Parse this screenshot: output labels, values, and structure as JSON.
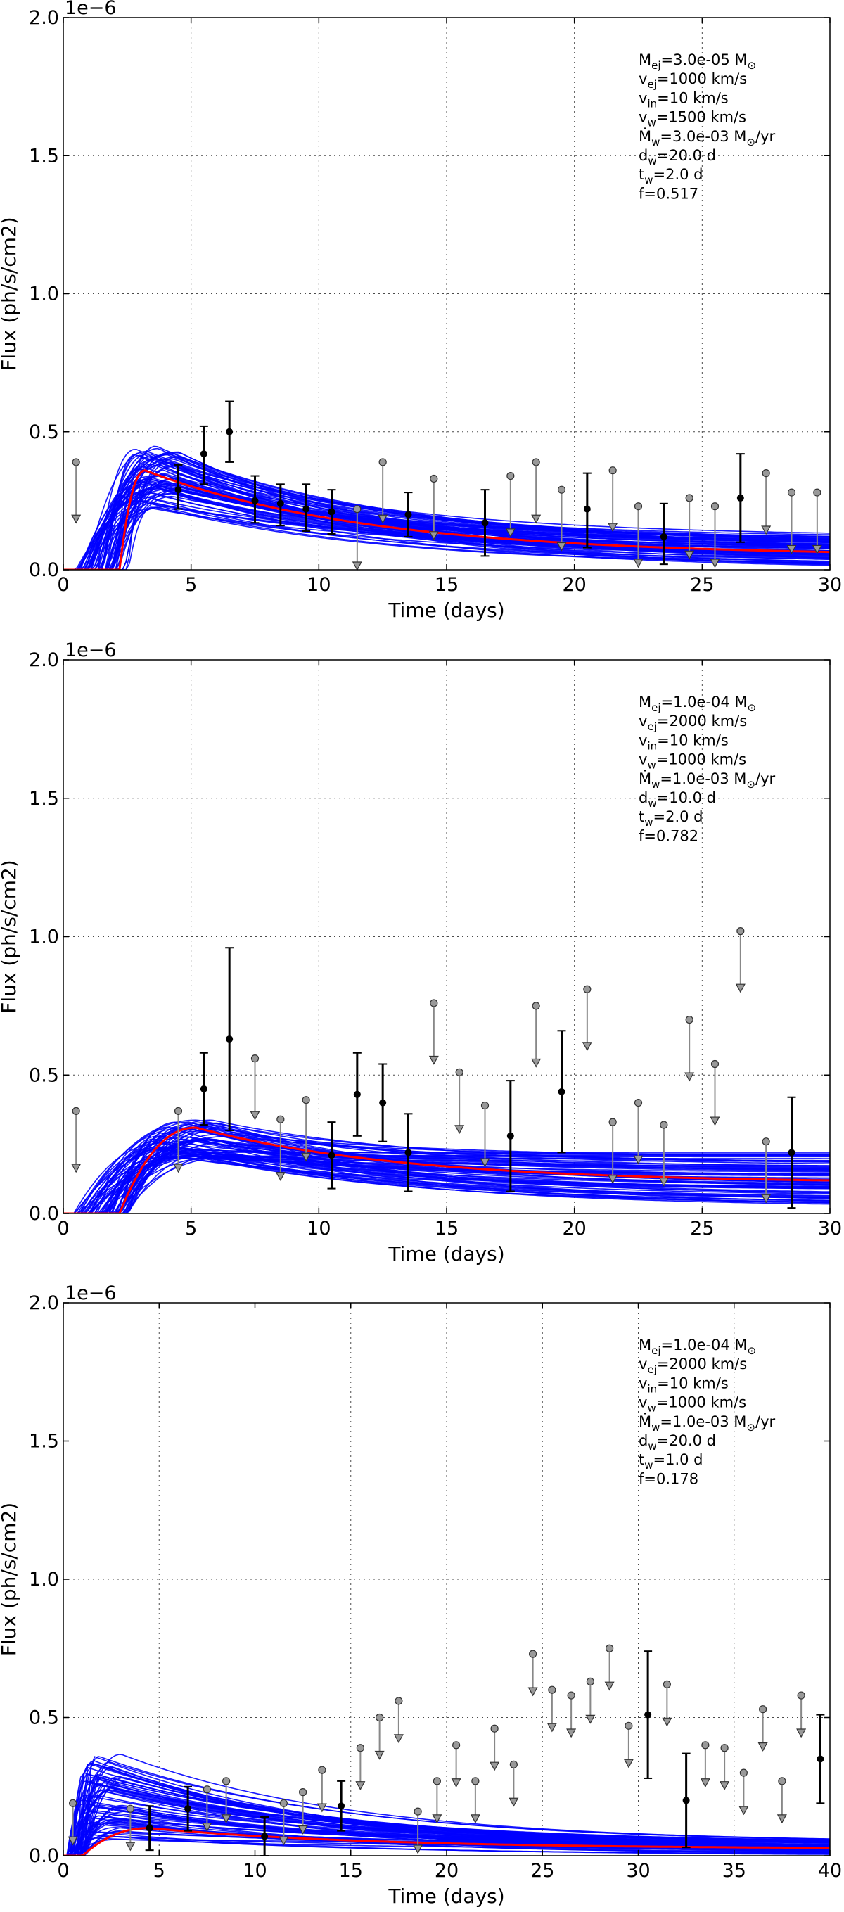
{
  "chart_data": [
    {
      "type": "line",
      "title": "",
      "xlabel": "Time (days)",
      "ylabel": "Flux (ph/s/cm2)",
      "offset_text": "1e−6",
      "xlim": [
        0,
        30
      ],
      "ylim": [
        0,
        2.0
      ],
      "xticks": [
        "0",
        "5",
        "10",
        "15",
        "20",
        "25",
        "30"
      ],
      "yticks": [
        "0.0",
        "0.5",
        "1.0",
        "1.5",
        "2.0"
      ],
      "grid": true,
      "annotation": [
        "M_ej=3.0e-05 M_⊙",
        "v_ej=1000 km/s",
        "v_in=10 km/s",
        "v_w=1500 km/s",
        "Ṁ_w=3.0e-03 M_⊙/yr",
        "d_w=20.0 d",
        "t_w=2.0 d",
        "f=0.517"
      ],
      "model": {
        "t0": 2.2,
        "peak_t": 3.2,
        "peak_flux": 0.36,
        "end_flux": 0.05,
        "ensemble": {
          "t0_range": [
            0.4,
            2.6
          ],
          "peak_t_range": [
            2.8,
            4.6
          ],
          "peak_range": [
            0.22,
            0.45
          ],
          "end_range": [
            0.0,
            0.12
          ]
        }
      },
      "detections": [
        {
          "t": 4.5,
          "y": 0.29,
          "lo": 0.22,
          "hi": 0.38
        },
        {
          "t": 5.5,
          "y": 0.42,
          "lo": 0.31,
          "hi": 0.52
        },
        {
          "t": 6.5,
          "y": 0.5,
          "lo": 0.39,
          "hi": 0.61
        },
        {
          "t": 7.5,
          "y": 0.25,
          "lo": 0.17,
          "hi": 0.34
        },
        {
          "t": 8.5,
          "y": 0.24,
          "lo": 0.16,
          "hi": 0.31
        },
        {
          "t": 9.5,
          "y": 0.22,
          "lo": 0.14,
          "hi": 0.31
        },
        {
          "t": 10.5,
          "y": 0.21,
          "lo": 0.13,
          "hi": 0.29
        },
        {
          "t": 13.5,
          "y": 0.2,
          "lo": 0.12,
          "hi": 0.28
        },
        {
          "t": 16.5,
          "y": 0.17,
          "lo": 0.05,
          "hi": 0.29
        },
        {
          "t": 20.5,
          "y": 0.22,
          "lo": 0.08,
          "hi": 0.35
        },
        {
          "t": 23.5,
          "y": 0.12,
          "lo": 0.02,
          "hi": 0.24
        },
        {
          "t": 26.5,
          "y": 0.26,
          "lo": 0.1,
          "hi": 0.42
        }
      ],
      "upper_limits": [
        {
          "t": 0.5,
          "y": 0.39,
          "arrow_to": 0.17
        },
        {
          "t": 11.5,
          "y": 0.22,
          "arrow_to": 0.0
        },
        {
          "t": 12.5,
          "y": 0.39,
          "arrow_to": 0.17
        },
        {
          "t": 14.5,
          "y": 0.33,
          "arrow_to": 0.11
        },
        {
          "t": 17.5,
          "y": 0.34,
          "arrow_to": 0.12
        },
        {
          "t": 18.5,
          "y": 0.39,
          "arrow_to": 0.17
        },
        {
          "t": 19.5,
          "y": 0.29,
          "arrow_to": 0.07
        },
        {
          "t": 21.5,
          "y": 0.36,
          "arrow_to": 0.14
        },
        {
          "t": 22.5,
          "y": 0.23,
          "arrow_to": 0.01
        },
        {
          "t": 24.5,
          "y": 0.26,
          "arrow_to": 0.04
        },
        {
          "t": 25.5,
          "y": 0.23,
          "arrow_to": 0.01
        },
        {
          "t": 27.5,
          "y": 0.35,
          "arrow_to": 0.13
        },
        {
          "t": 28.5,
          "y": 0.28,
          "arrow_to": 0.06
        },
        {
          "t": 29.5,
          "y": 0.28,
          "arrow_to": 0.06
        }
      ]
    },
    {
      "type": "line",
      "title": "",
      "xlabel": "Time (days)",
      "ylabel": "Flux (ph/s/cm2)",
      "offset_text": "1e−6",
      "xlim": [
        0,
        30
      ],
      "ylim": [
        0,
        2.0
      ],
      "xticks": [
        "0",
        "5",
        "10",
        "15",
        "20",
        "25",
        "30"
      ],
      "yticks": [
        "0.0",
        "0.5",
        "1.0",
        "1.5",
        "2.0"
      ],
      "grid": true,
      "annotation": [
        "M_ej=1.0e-04 M_⊙",
        "v_ej=2000 km/s",
        "v_in=10 km/s",
        "v_w=1000 km/s",
        "Ṁ_w=1.0e-03 M_⊙/yr",
        "d_w=10.0 d",
        "t_w=2.0 d",
        "f=0.782"
      ],
      "model": {
        "t0": 2.2,
        "peak_t": 5.2,
        "peak_flux": 0.31,
        "end_flux": 0.11,
        "ensemble": {
          "t0_range": [
            0.4,
            2.6
          ],
          "peak_t_range": [
            3.5,
            6.5
          ],
          "peak_range": [
            0.2,
            0.34
          ],
          "end_range": [
            0.02,
            0.22
          ]
        }
      },
      "detections": [
        {
          "t": 5.5,
          "y": 0.45,
          "lo": 0.32,
          "hi": 0.58
        },
        {
          "t": 6.5,
          "y": 0.63,
          "lo": 0.3,
          "hi": 0.96
        },
        {
          "t": 10.5,
          "y": 0.21,
          "lo": 0.09,
          "hi": 0.33
        },
        {
          "t": 11.5,
          "y": 0.43,
          "lo": 0.28,
          "hi": 0.58
        },
        {
          "t": 12.5,
          "y": 0.4,
          "lo": 0.26,
          "hi": 0.54
        },
        {
          "t": 13.5,
          "y": 0.22,
          "lo": 0.08,
          "hi": 0.36
        },
        {
          "t": 17.5,
          "y": 0.28,
          "lo": 0.08,
          "hi": 0.48
        },
        {
          "t": 19.5,
          "y": 0.44,
          "lo": 0.22,
          "hi": 0.66
        },
        {
          "t": 28.5,
          "y": 0.22,
          "lo": 0.02,
          "hi": 0.42
        }
      ],
      "upper_limits": [
        {
          "t": 0.5,
          "y": 0.37,
          "arrow_to": 0.15
        },
        {
          "t": 4.5,
          "y": 0.37,
          "arrow_to": 0.15
        },
        {
          "t": 7.5,
          "y": 0.56,
          "arrow_to": 0.34
        },
        {
          "t": 8.5,
          "y": 0.34,
          "arrow_to": 0.12
        },
        {
          "t": 9.5,
          "y": 0.41,
          "arrow_to": 0.19
        },
        {
          "t": 14.5,
          "y": 0.76,
          "arrow_to": 0.54
        },
        {
          "t": 15.5,
          "y": 0.51,
          "arrow_to": 0.29
        },
        {
          "t": 16.5,
          "y": 0.39,
          "arrow_to": 0.17
        },
        {
          "t": 18.5,
          "y": 0.75,
          "arrow_to": 0.53
        },
        {
          "t": 20.5,
          "y": 0.81,
          "arrow_to": 0.59
        },
        {
          "t": 21.5,
          "y": 0.33,
          "arrow_to": 0.11
        },
        {
          "t": 22.5,
          "y": 0.4,
          "arrow_to": 0.18
        },
        {
          "t": 23.5,
          "y": 0.32,
          "arrow_to": 0.1
        },
        {
          "t": 24.5,
          "y": 0.7,
          "arrow_to": 0.48
        },
        {
          "t": 25.5,
          "y": 0.54,
          "arrow_to": 0.32
        },
        {
          "t": 26.5,
          "y": 1.02,
          "arrow_to": 0.8
        },
        {
          "t": 27.5,
          "y": 0.26,
          "arrow_to": 0.04
        }
      ]
    },
    {
      "type": "line",
      "title": "",
      "xlabel": "Time (days)",
      "ylabel": "Flux (ph/s/cm2)",
      "offset_text": "1e−6",
      "xlim": [
        0,
        40
      ],
      "ylim": [
        0,
        2.0
      ],
      "xticks": [
        "0",
        "5",
        "10",
        "15",
        "20",
        "25",
        "30",
        "35",
        "40"
      ],
      "yticks": [
        "0.0",
        "0.5",
        "1.0",
        "1.5",
        "2.0"
      ],
      "grid": true,
      "annotation": [
        "M_ej=1.0e-04 M_⊙",
        "v_ej=2000 km/s",
        "v_in=10 km/s",
        "v_w=1000 km/s",
        "Ṁ_w=1.0e-03 M_⊙/yr",
        "d_w=20.0 d",
        "t_w=1.0 d",
        "f=0.178"
      ],
      "model": {
        "t0": 1.0,
        "peak_t": 4.5,
        "peak_flux": 0.1,
        "end_flux": 0.025,
        "ensemble": {
          "t0_range": [
            0.2,
            1.2
          ],
          "peak_t_range": [
            0.9,
            3.5
          ],
          "peak_range": [
            0.05,
            0.37
          ],
          "end_range": [
            0.0,
            0.05
          ]
        }
      },
      "detections": [
        {
          "t": 4.5,
          "y": 0.1,
          "lo": 0.02,
          "hi": 0.18
        },
        {
          "t": 6.5,
          "y": 0.17,
          "lo": 0.09,
          "hi": 0.25
        },
        {
          "t": 10.5,
          "y": 0.07,
          "lo": 0.0,
          "hi": 0.14
        },
        {
          "t": 14.5,
          "y": 0.18,
          "lo": 0.09,
          "hi": 0.27
        },
        {
          "t": 30.5,
          "y": 0.51,
          "lo": 0.28,
          "hi": 0.74
        },
        {
          "t": 32.5,
          "y": 0.2,
          "lo": 0.03,
          "hi": 0.37
        },
        {
          "t": 39.5,
          "y": 0.35,
          "lo": 0.19,
          "hi": 0.51
        }
      ],
      "upper_limits": [
        {
          "t": 0.5,
          "y": 0.19,
          "arrow_to": 0.04
        },
        {
          "t": 3.5,
          "y": 0.17,
          "arrow_to": 0.02
        },
        {
          "t": 7.5,
          "y": 0.24,
          "arrow_to": 0.09
        },
        {
          "t": 8.5,
          "y": 0.27,
          "arrow_to": 0.12
        },
        {
          "t": 11.5,
          "y": 0.19,
          "arrow_to": 0.04
        },
        {
          "t": 12.5,
          "y": 0.23,
          "arrow_to": 0.08
        },
        {
          "t": 13.5,
          "y": 0.31,
          "arrow_to": 0.16
        },
        {
          "t": 15.5,
          "y": 0.39,
          "arrow_to": 0.24
        },
        {
          "t": 16.5,
          "y": 0.5,
          "arrow_to": 0.35
        },
        {
          "t": 17.5,
          "y": 0.56,
          "arrow_to": 0.41
        },
        {
          "t": 18.5,
          "y": 0.16,
          "arrow_to": 0.01
        },
        {
          "t": 19.5,
          "y": 0.27,
          "arrow_to": 0.12
        },
        {
          "t": 20.5,
          "y": 0.4,
          "arrow_to": 0.25
        },
        {
          "t": 21.5,
          "y": 0.27,
          "arrow_to": 0.12
        },
        {
          "t": 22.5,
          "y": 0.46,
          "arrow_to": 0.31
        },
        {
          "t": 23.5,
          "y": 0.33,
          "arrow_to": 0.18
        },
        {
          "t": 24.5,
          "y": 0.73,
          "arrow_to": 0.58
        },
        {
          "t": 25.5,
          "y": 0.6,
          "arrow_to": 0.45
        },
        {
          "t": 26.5,
          "y": 0.58,
          "arrow_to": 0.43
        },
        {
          "t": 27.5,
          "y": 0.63,
          "arrow_to": 0.48
        },
        {
          "t": 28.5,
          "y": 0.75,
          "arrow_to": 0.6
        },
        {
          "t": 29.5,
          "y": 0.47,
          "arrow_to": 0.32
        },
        {
          "t": 31.5,
          "y": 0.62,
          "arrow_to": 0.47
        },
        {
          "t": 33.5,
          "y": 0.4,
          "arrow_to": 0.25
        },
        {
          "t": 34.5,
          "y": 0.39,
          "arrow_to": 0.24
        },
        {
          "t": 35.5,
          "y": 0.3,
          "arrow_to": 0.15
        },
        {
          "t": 36.5,
          "y": 0.53,
          "arrow_to": 0.38
        },
        {
          "t": 37.5,
          "y": 0.27,
          "arrow_to": 0.12
        },
        {
          "t": 38.5,
          "y": 0.58,
          "arrow_to": 0.43
        }
      ]
    }
  ],
  "colors": {
    "model_ensemble": "#0000ff",
    "best_fit": "#ff0000",
    "detection": "#000000",
    "upper_limit": "#808080"
  }
}
